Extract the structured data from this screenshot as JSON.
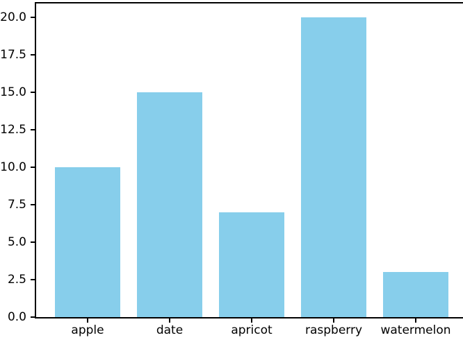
{
  "chart_data": {
    "type": "bar",
    "title": "",
    "xlabel": "",
    "ylabel": "",
    "categories": [
      "apple",
      "date",
      "apricot",
      "raspberry",
      "watermelon"
    ],
    "values": [
      10,
      15,
      7,
      20,
      3
    ],
    "ylim": [
      0,
      21
    ],
    "yticks": [
      0,
      2.5,
      5,
      7.5,
      10,
      12.5,
      15,
      17.5,
      20
    ],
    "ytick_labels": [
      "0.0",
      "2.5",
      "5.0",
      "7.5",
      "10.0",
      "12.5",
      "15.0",
      "17.5",
      "20.0"
    ],
    "grid": false,
    "legend_visible": false,
    "bar_color": "#87CEEB",
    "spine_color": "#000000",
    "text_color": "#000000",
    "background_color": "#ffffff"
  }
}
